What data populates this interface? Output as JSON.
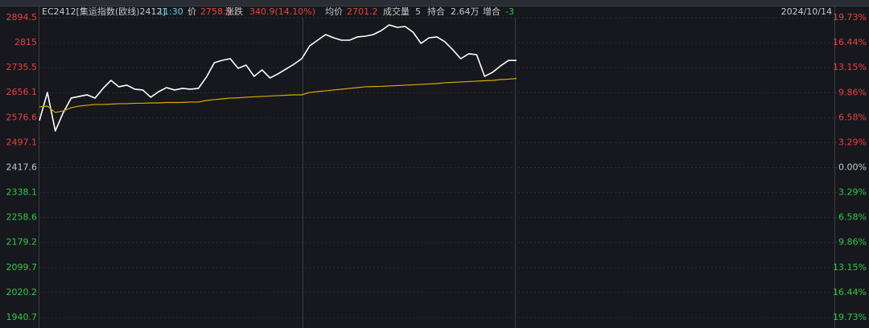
{
  "info": {
    "contract": "EC2412[集运指数(欧线)2412]",
    "time": "11:30",
    "price_label": "价",
    "price": "2758.5",
    "change_label": "涨跌",
    "change": "340.9(14.10%)",
    "avg_label": "均价",
    "avg": "2701.2",
    "volume_label": "成交量",
    "volume": "5",
    "oi_label": "持合",
    "oi": "2.64万",
    "oi_change_label": "增合",
    "oi_change": "-3",
    "date": "2024/10/14"
  },
  "chart_data": {
    "type": "line",
    "ylim": [
      1940.7,
      2894.5
    ],
    "yticks": [
      2894.5,
      2815.0,
      2735.5,
      2656.1,
      2576.6,
      2497.1,
      2417.6,
      2338.1,
      2258.6,
      2179.2,
      2099.7,
      2020.2,
      1940.7
    ],
    "y2lim": [
      -19.73,
      19.73
    ],
    "y2ticks": [
      {
        "value": 19.73,
        "label": "19.73%"
      },
      {
        "value": 16.44,
        "label": "16.44%"
      },
      {
        "value": 13.15,
        "label": "13.15%"
      },
      {
        "value": 9.86,
        "label": "9.86%"
      },
      {
        "value": 6.58,
        "label": "6.58%"
      },
      {
        "value": 3.29,
        "label": "3.29%"
      },
      {
        "value": 0,
        "label": "0.00%"
      },
      {
        "value": -3.29,
        "label": "3.29%"
      },
      {
        "value": -6.58,
        "label": "6.58%"
      },
      {
        "value": -9.86,
        "label": "9.86%"
      },
      {
        "value": -13.15,
        "label": "13.15%"
      },
      {
        "value": -16.44,
        "label": "16.44%"
      },
      {
        "value": -19.73,
        "label": "19.73%"
      }
    ],
    "up_color": "#e8413c",
    "down_color": "#2fc84a",
    "flat_color": "#c8c8c8",
    "series": [
      {
        "color": "#ffffff",
        "values": [
          2567.3,
          2656.8,
          2534.1,
          2592.9,
          2638.9,
          2644.0,
          2649.1,
          2638.9,
          2669.6,
          2695.1,
          2674.7,
          2679.8,
          2667.0,
          2664.5,
          2641.5,
          2659.3,
          2672.1,
          2664.5,
          2669.6,
          2667.0,
          2669.6,
          2705.4,
          2751.4,
          2759.0,
          2764.1,
          2733.5,
          2743.7,
          2707.9,
          2728.4,
          2702.8,
          2715.6,
          2730.9,
          2746.2,
          2764.1,
          2805.0,
          2822.9,
          2840.8,
          2830.6,
          2822.9,
          2822.9,
          2833.2,
          2835.7,
          2840.8,
          2853.6,
          2871.5,
          2863.8,
          2866.4,
          2848.5,
          2812.7,
          2830.6,
          2833.2,
          2817.8,
          2792.3,
          2764.1,
          2779.5,
          2776.9,
          2707.9,
          2720.7,
          2741.1,
          2758.5,
          2758.5,
          null,
          null,
          null,
          null,
          null,
          null,
          null,
          null,
          null,
          null,
          null,
          null,
          null,
          null,
          null,
          null,
          null,
          null,
          null,
          null,
          null,
          null,
          null,
          null,
          null,
          null,
          null,
          null,
          null,
          null,
          null,
          null,
          null,
          null,
          null,
          null,
          null,
          null,
          null
        ]
      },
      {
        "color": "#e0a800",
        "values": [
          2610.8,
          2613.3,
          2592.9,
          2598.0,
          2608.2,
          2613.3,
          2615.9,
          2618.5,
          2618.5,
          2619.7,
          2621.0,
          2621.0,
          2622.3,
          2622.3,
          2623.5,
          2623.5,
          2624.8,
          2624.8,
          2625.0,
          2626.1,
          2626.1,
          2631.2,
          2633.8,
          2636.3,
          2638.9,
          2639.5,
          2641.5,
          2642.8,
          2644.0,
          2645.3,
          2646.6,
          2647.8,
          2649.1,
          2649.1,
          2656.8,
          2659.3,
          2661.9,
          2664.5,
          2667.0,
          2669.6,
          2672.1,
          2674.7,
          2675.5,
          2676.0,
          2677.3,
          2678.6,
          2679.8,
          2681.1,
          2682.4,
          2683.7,
          2684.9,
          2687.5,
          2688.8,
          2690.1,
          2691.3,
          2692.6,
          2694.0,
          2695.1,
          2697.6,
          2699.0,
          2701.2,
          null,
          null,
          null,
          null,
          null,
          null,
          null,
          null,
          null,
          null,
          null,
          null,
          null,
          null,
          null,
          null,
          null,
          null,
          null,
          null,
          null,
          null,
          null,
          null,
          null,
          null,
          null,
          null,
          null,
          null,
          null,
          null,
          null,
          null,
          null,
          null,
          null,
          null,
          null
        ]
      }
    ]
  }
}
